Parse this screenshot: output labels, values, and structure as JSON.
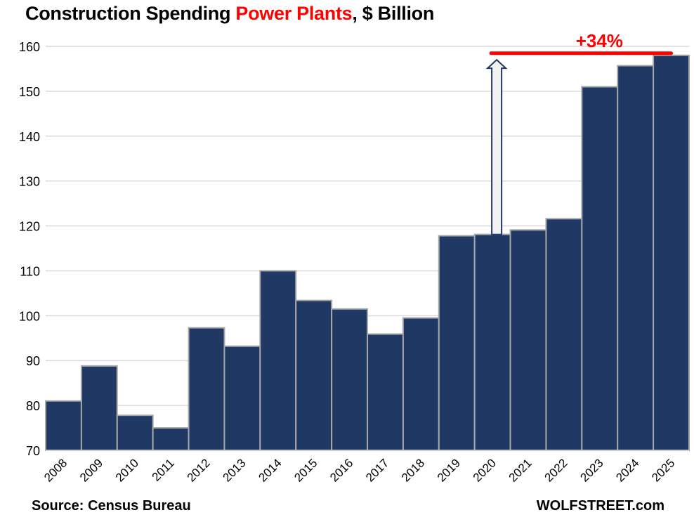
{
  "title": {
    "prefix": "Construction Spending ",
    "highlight": "Power Plants",
    "suffix": ", $ Billion",
    "highlight_color": "#ff0000"
  },
  "footer": {
    "source": "Source: Census Bureau",
    "brand": "WOLFSTREET.com"
  },
  "colors": {
    "bar_fill": "#203864",
    "bar_border": "#a6a6a6",
    "grid": "#d9d9d9",
    "annotation": "#ff0000",
    "arrow_fill": "#f2f2f2",
    "arrow_stroke": "#203864"
  },
  "chart_data": {
    "type": "bar",
    "title": "Construction Spending Power Plants, $ Billion",
    "xlabel": "",
    "ylabel": "",
    "categories": [
      "2008",
      "2009",
      "2010",
      "2011",
      "2012",
      "2013",
      "2014",
      "2015",
      "2016",
      "2017",
      "2018",
      "2019",
      "2020",
      "2021",
      "2022",
      "2023",
      "2024",
      "2025"
    ],
    "values": [
      81.0,
      88.8,
      77.8,
      75.0,
      97.3,
      93.2,
      110.0,
      103.4,
      101.5,
      95.9,
      99.5,
      117.8,
      118.1,
      119.1,
      121.6,
      151.0,
      155.7,
      158.0
    ],
    "ylim": [
      70,
      160
    ],
    "yticks": [
      70,
      80,
      90,
      100,
      110,
      120,
      130,
      140,
      150,
      160
    ],
    "grid": true,
    "legend": "none",
    "annotations": [
      {
        "type": "arrow",
        "from_category": "2020",
        "from_value": 118.1,
        "to_value": 157.0
      },
      {
        "type": "hline",
        "value": 158.0,
        "from_category": "2020",
        "to_category": "2025"
      },
      {
        "type": "label",
        "text": "+34%",
        "position": "above-hline"
      }
    ]
  }
}
